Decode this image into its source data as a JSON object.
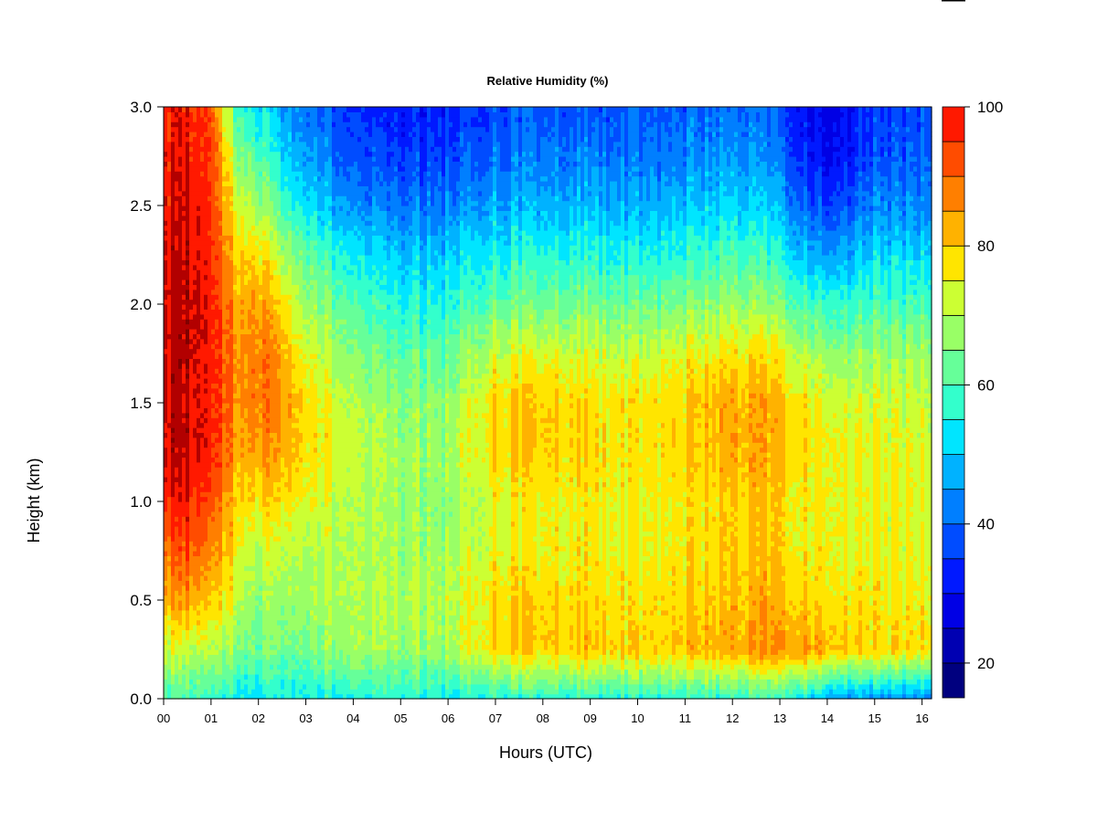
{
  "chart_data": {
    "type": "heatmap",
    "title": "Relative Humidity (%)",
    "xlabel": "Hours (UTC)",
    "ylabel": "Height (km)",
    "xlim": [
      0,
      16.2
    ],
    "ylim": [
      0,
      3.0
    ],
    "x_ticks": [
      "00",
      "01",
      "02",
      "03",
      "04",
      "05",
      "06",
      "07",
      "08",
      "09",
      "10",
      "11",
      "12",
      "13",
      "14",
      "15",
      "16"
    ],
    "y_ticks": [
      "0.0",
      "0.5",
      "1.0",
      "1.5",
      "2.0",
      "2.5",
      "3.0"
    ],
    "colorbar": {
      "range": [
        15,
        100
      ],
      "ticks": [
        "20",
        "40",
        "60",
        "80",
        "100"
      ],
      "levels": [
        15,
        20,
        25,
        30,
        35,
        40,
        45,
        50,
        55,
        60,
        65,
        70,
        75,
        80,
        85,
        90,
        95,
        100
      ],
      "colors": [
        "#00007F",
        "#0000B2",
        "#0000E5",
        "#0019FF",
        "#004CFF",
        "#007FFF",
        "#00B2FF",
        "#00E5FF",
        "#33FFCC",
        "#66FF99",
        "#99FF66",
        "#CCFF33",
        "#FFE500",
        "#FFB200",
        "#FF7F00",
        "#FF4C00",
        "#FF1900",
        "#B20000",
        "#7F0000"
      ]
    },
    "grid": false,
    "humidity_profiles": [
      {
        "hour": 0.0,
        "rh": [
          55,
          68,
          78,
          85,
          92,
          96,
          96,
          96,
          96,
          96,
          94,
          94,
          92
        ]
      },
      {
        "hour": 0.5,
        "rh": [
          55,
          68,
          80,
          88,
          94,
          97,
          97,
          98,
          98,
          97,
          96,
          95,
          94
        ]
      },
      {
        "hour": 1.0,
        "rh": [
          52,
          66,
          75,
          82,
          88,
          93,
          93,
          93,
          93,
          92,
          90,
          90,
          88
        ]
      },
      {
        "hour": 1.5,
        "rh": [
          50,
          62,
          68,
          72,
          76,
          80,
          82,
          82,
          80,
          76,
          70,
          64,
          56
        ]
      },
      {
        "hour": 2.0,
        "rh": [
          48,
          58,
          62,
          66,
          72,
          80,
          84,
          84,
          80,
          74,
          64,
          56,
          48
        ]
      },
      {
        "hour": 2.5,
        "rh": [
          50,
          60,
          64,
          68,
          74,
          80,
          82,
          80,
          74,
          66,
          56,
          48,
          42
        ]
      },
      {
        "hour": 3.0,
        "rh": [
          50,
          60,
          64,
          66,
          70,
          74,
          74,
          70,
          64,
          58,
          48,
          42,
          38
        ]
      },
      {
        "hour": 4.0,
        "rh": [
          50,
          62,
          64,
          64,
          64,
          66,
          64,
          60,
          54,
          48,
          38,
          32,
          28
        ]
      },
      {
        "hour": 5.0,
        "rh": [
          50,
          62,
          64,
          62,
          62,
          62,
          60,
          56,
          50,
          44,
          36,
          30,
          26
        ]
      },
      {
        "hour": 6.0,
        "rh": [
          50,
          64,
          66,
          64,
          62,
          64,
          62,
          58,
          52,
          46,
          38,
          32,
          28
        ]
      },
      {
        "hour": 7.0,
        "rh": [
          52,
          74,
          74,
          70,
          70,
          74,
          74,
          68,
          58,
          50,
          42,
          36,
          32
        ]
      },
      {
        "hour": 8.0,
        "rh": [
          52,
          76,
          76,
          72,
          72,
          76,
          76,
          70,
          60,
          52,
          44,
          38,
          34
        ]
      },
      {
        "hour": 9.0,
        "rh": [
          52,
          76,
          74,
          72,
          72,
          74,
          74,
          68,
          60,
          52,
          44,
          38,
          34
        ]
      },
      {
        "hour": 10.0,
        "rh": [
          52,
          74,
          72,
          70,
          70,
          72,
          72,
          66,
          58,
          50,
          42,
          36,
          34
        ]
      },
      {
        "hour": 11.0,
        "rh": [
          52,
          76,
          74,
          72,
          72,
          74,
          74,
          70,
          60,
          52,
          44,
          38,
          34
        ]
      },
      {
        "hour": 12.0,
        "rh": [
          52,
          78,
          76,
          74,
          74,
          78,
          78,
          72,
          62,
          54,
          46,
          40,
          36
        ]
      },
      {
        "hour": 13.0,
        "rh": [
          52,
          80,
          76,
          74,
          74,
          76,
          76,
          70,
          60,
          50,
          42,
          36,
          32
        ]
      },
      {
        "hour": 13.5,
        "rh": [
          50,
          82,
          76,
          72,
          72,
          74,
          74,
          66,
          56,
          46,
          36,
          30,
          26
        ]
      },
      {
        "hour": 14.0,
        "rh": [
          42,
          76,
          72,
          70,
          70,
          70,
          68,
          62,
          52,
          40,
          30,
          24,
          22
        ]
      },
      {
        "hour": 15.0,
        "rh": [
          40,
          74,
          72,
          70,
          70,
          70,
          68,
          62,
          54,
          46,
          38,
          32,
          30
        ]
      },
      {
        "hour": 16.2,
        "rh": [
          38,
          72,
          70,
          68,
          68,
          68,
          66,
          62,
          54,
          46,
          38,
          34,
          32
        ]
      }
    ],
    "profile_heights_km": [
      0.0,
      0.25,
      0.5,
      0.75,
      1.0,
      1.25,
      1.5,
      1.75,
      2.0,
      2.25,
      2.5,
      2.75,
      3.0
    ]
  }
}
